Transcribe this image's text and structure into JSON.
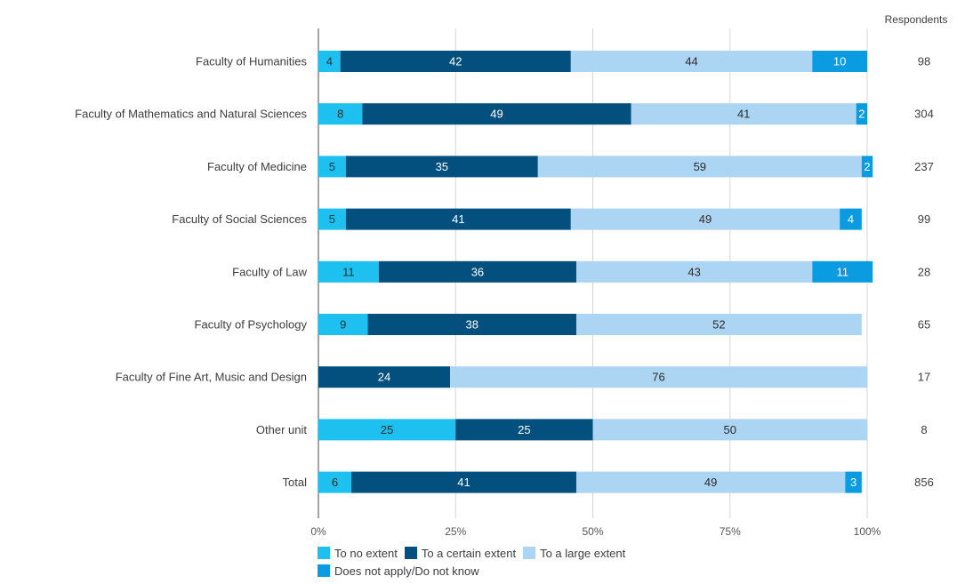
{
  "chart_data": {
    "type": "bar",
    "orientation": "horizontal",
    "stacked": "percent",
    "categories": [
      "Faculty of Humanities",
      "Faculty of Mathematics and Natural Sciences",
      "Faculty of Medicine",
      "Faculty of Social Sciences",
      "Faculty of Law",
      "Faculty of Psychology",
      "Faculty of Fine Art, Music and Design",
      "Other unit",
      "Total"
    ],
    "series": [
      {
        "name": "To no extent",
        "color": "#1ec0ef",
        "label_color": "#2b2b2b",
        "values": [
          4,
          8,
          5,
          5,
          11,
          9,
          0,
          25,
          6
        ]
      },
      {
        "name": "To a certain extent",
        "color": "#03507f",
        "label_color": "#ffffff",
        "values": [
          42,
          49,
          35,
          41,
          36,
          38,
          24,
          25,
          41
        ]
      },
      {
        "name": "To a large extent",
        "color": "#abd5f3",
        "label_color": "#2b2b2b",
        "values": [
          44,
          41,
          59,
          49,
          43,
          52,
          76,
          50,
          49
        ]
      },
      {
        "name": "Does not apply/Do not know",
        "color": "#0a9be0",
        "label_color": "#ffffff",
        "values": [
          10,
          2,
          2,
          4,
          11,
          0,
          0,
          0,
          3
        ]
      }
    ],
    "respondents_header": "Respondents",
    "respondents": [
      98,
      304,
      237,
      99,
      28,
      65,
      17,
      8,
      856
    ],
    "x_ticks": [
      "0%",
      "25%",
      "50%",
      "75%",
      "100%"
    ],
    "xlim": [
      0,
      100
    ],
    "grid": true,
    "legend_position": "bottom"
  }
}
